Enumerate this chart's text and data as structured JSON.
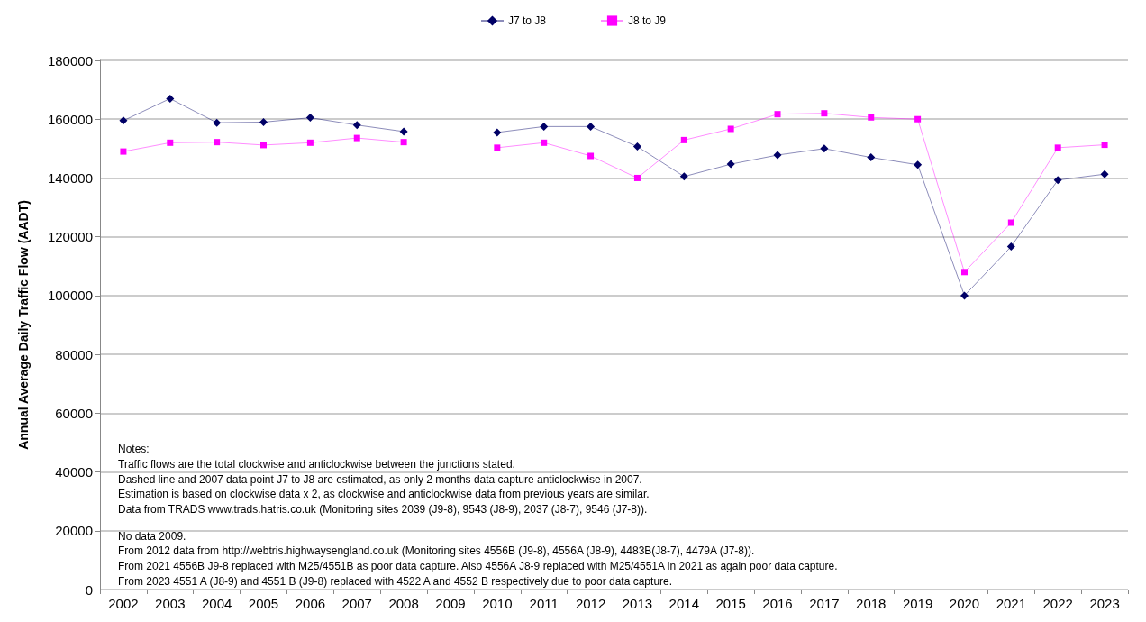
{
  "chart_data": {
    "type": "line",
    "ylabel": "Annual Average Daily Traffic Flow (AADT)",
    "categories": [
      "2002",
      "2003",
      "2004",
      "2005",
      "2006",
      "2007",
      "2008",
      "2009",
      "2010",
      "2011",
      "2012",
      "2013",
      "2014",
      "2015",
      "2016",
      "2017",
      "2018",
      "2019",
      "2020",
      "2021",
      "2022",
      "2023"
    ],
    "series": [
      {
        "name": "J7 to J8",
        "color": "#000066",
        "marker": "diamond",
        "values": [
          159500,
          167000,
          158800,
          159000,
          160500,
          158000,
          155800,
          null,
          155500,
          157500,
          157500,
          150700,
          140500,
          144700,
          147800,
          150000,
          147000,
          144500,
          100000,
          116700,
          139300,
          141300
        ]
      },
      {
        "name": "J8 to J9",
        "color": "#ff00ff",
        "marker": "square",
        "values": [
          149000,
          152000,
          152200,
          151200,
          152000,
          153600,
          152200,
          null,
          150300,
          152000,
          147500,
          140000,
          152900,
          156700,
          161700,
          162000,
          160600,
          160000,
          108000,
          124800,
          150300,
          151300
        ]
      }
    ],
    "ylim": [
      0,
      180000
    ],
    "yticks": [
      0,
      20000,
      40000,
      60000,
      80000,
      100000,
      120000,
      140000,
      160000,
      180000
    ],
    "grid": "y",
    "legend": "top",
    "annotations": [
      "Notes:",
      "Traffic flows are the total clockwise and anticlockwise between the junctions stated.",
      "Dashed line and 2007 data point J7 to J8 are estimated, as only 2 months data capture anticlockwise in 2007.",
      "Estimation is based on clockwise data x 2, as clockwise and anticlockwise data from previous years are similar.",
      "Data from TRADS www.trads.hatris.co.uk (Monitoring sites 2039 (J9-8), 9543 (J8-9), 2037 (J8-7), 9546 (J7-8)).",
      "No data 2009.",
      "From 2012 data from http://webtris.highwaysengland.co.uk (Monitoring sites 4556B (J9-8), 4556A (J8-9), 4483B(J8-7), 4479A (J7-8)).",
      "From 2021 4556B J9-8 replaced with M25/4551B as poor data capture. Also 4556A J8-9 replaced with M25/4551A in 2021 as again poor data capture.",
      "From 2023 4551 A (J8-9) and 4551 B (J9-8) replaced with 4522 A and 4552 B respectively due to poor data capture."
    ]
  }
}
